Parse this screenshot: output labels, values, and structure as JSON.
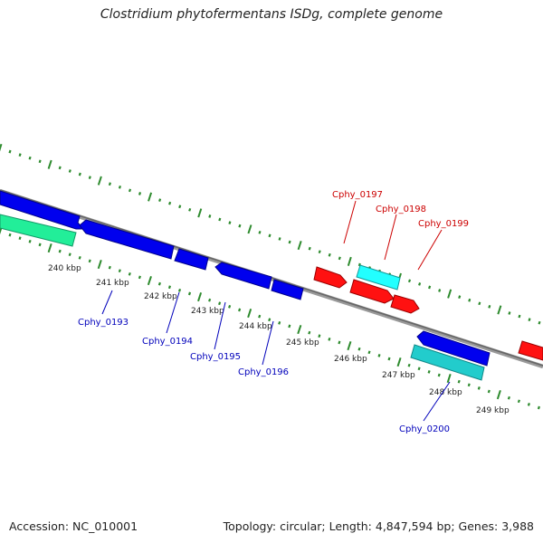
{
  "title": "Clostridium phytofermentans ISDg, complete genome",
  "footer": {
    "accession": "Accession: NC_010001",
    "summary": "Topology: circular; Length: 4,847,594 bp; Genes: 3,988"
  },
  "colors": {
    "backbone": "#808080",
    "tick": "#2e8b2e",
    "forward_gene": "#ff0000",
    "reverse_gene": "#0000ff",
    "forward_label": "#cc0000",
    "reverse_label": "#0000bb",
    "teal_gene": "#20c0c0",
    "cyan_gene": "#00ffff",
    "spring_gene": "#20e090"
  },
  "scale_labels": [
    "240 kbp",
    "241 kbp",
    "242 kbp",
    "243 kbp",
    "244 kbp",
    "245 kbp",
    "246 kbp",
    "247 kbp",
    "248 kbp",
    "249 kbp"
  ],
  "gene_labels": [
    {
      "text": "Cphy_0193",
      "strand": "reverse"
    },
    {
      "text": "Cphy_0194",
      "strand": "reverse"
    },
    {
      "text": "Cphy_0195",
      "strand": "reverse"
    },
    {
      "text": "Cphy_0196",
      "strand": "reverse"
    },
    {
      "text": "Cphy_0197",
      "strand": "forward"
    },
    {
      "text": "Cphy_0198",
      "strand": "forward"
    },
    {
      "text": "Cphy_0199",
      "strand": "forward"
    },
    {
      "text": "Cphy_0200",
      "strand": "reverse"
    }
  ]
}
